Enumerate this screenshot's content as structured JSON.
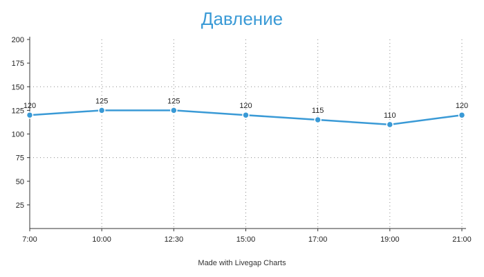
{
  "colors": {
    "title": "#3a9ad6",
    "series": "#3a9ad6",
    "axis": "#333333",
    "grid": "#888888"
  },
  "chart_data": {
    "type": "line",
    "title": "Давление",
    "xlabel": "",
    "ylabel": "",
    "x": [
      "7:00",
      "10:00",
      "12:30",
      "15:00",
      "17:00",
      "19:00",
      "21:00"
    ],
    "series": [
      {
        "values": [
          120,
          125,
          125,
          120,
          115,
          110,
          120
        ]
      }
    ],
    "ylim": [
      0,
      200
    ],
    "yticks": [
      25,
      50,
      75,
      100,
      125,
      150,
      175,
      200
    ],
    "grid": "dotted vertical at each x category; dotted horizontal at 75 and 150",
    "data_labels": true
  },
  "footer": {
    "credit": "Made with Livegap Charts"
  }
}
